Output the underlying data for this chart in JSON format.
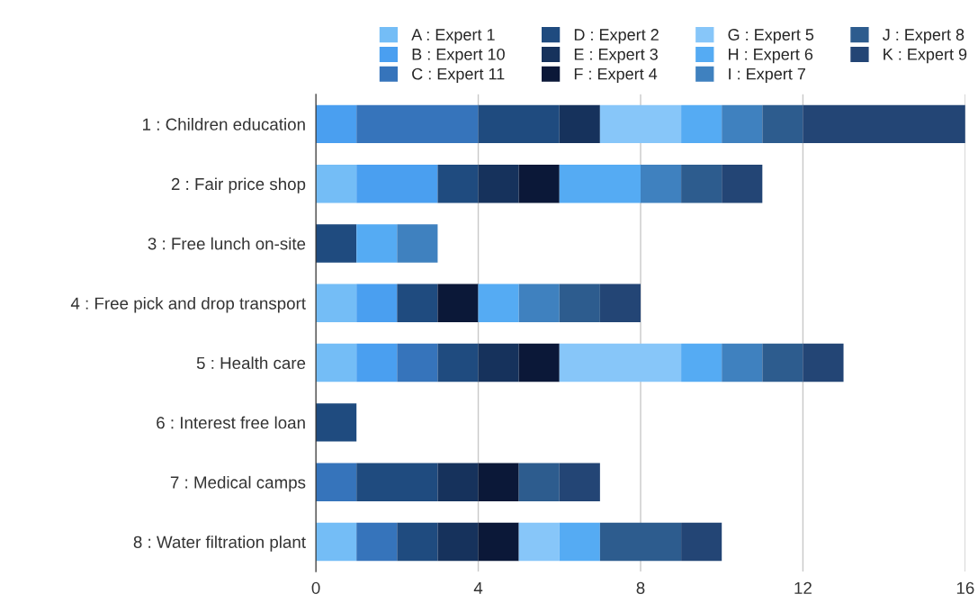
{
  "chart_data": {
    "type": "bar",
    "orientation": "horizontal",
    "stacked": true,
    "categories": [
      "1 : Children education",
      "2 : Fair price shop",
      "3 : Free lunch on-site",
      "4 : Free pick and drop transport",
      "5 : Health care",
      "6 : Interest free loan",
      "7 : Medical camps",
      "8 : Water filtration plant"
    ],
    "series": [
      {
        "name": "A : Expert 1",
        "color": "#74bdf6",
        "values": [
          null,
          1,
          null,
          1,
          1,
          null,
          null,
          1
        ]
      },
      {
        "name": "B : Expert 10",
        "color": "#4a9ff0",
        "values": [
          1,
          2,
          null,
          1,
          1,
          null,
          null,
          null
        ]
      },
      {
        "name": "C : Expert 11",
        "color": "#3674bb",
        "values": [
          3,
          null,
          null,
          null,
          1,
          null,
          1,
          1
        ]
      },
      {
        "name": "D : Expert 2",
        "color": "#1f4b7f",
        "values": [
          2,
          1,
          1,
          1,
          1,
          1,
          2,
          1
        ]
      },
      {
        "name": "E : Expert 3",
        "color": "#16325c",
        "values": [
          1,
          1,
          null,
          null,
          1,
          null,
          1,
          1
        ]
      },
      {
        "name": "F : Expert 4",
        "color": "#0b1838",
        "values": [
          null,
          1,
          null,
          1,
          1,
          null,
          1,
          1
        ]
      },
      {
        "name": "G : Expert 5",
        "color": "#87c6f9",
        "values": [
          2,
          null,
          null,
          null,
          3,
          null,
          null,
          1
        ]
      },
      {
        "name": "H : Expert 6",
        "color": "#55abf3",
        "values": [
          1,
          2,
          1,
          1,
          1,
          null,
          null,
          1
        ]
      },
      {
        "name": "I : Expert 7",
        "color": "#3f81bf",
        "values": [
          1,
          1,
          1,
          1,
          1,
          null,
          null,
          null
        ]
      },
      {
        "name": "J : Expert 8",
        "color": "#2d5c8e",
        "values": [
          1,
          1,
          null,
          1,
          1,
          null,
          1,
          2
        ]
      },
      {
        "name": "K : Expert 9",
        "color": "#234575",
        "values": [
          4,
          1,
          null,
          1,
          1,
          null,
          1,
          1
        ]
      }
    ],
    "xlim": [
      0,
      16
    ],
    "xticks": [
      0,
      4,
      8,
      12,
      16
    ],
    "grid": "x",
    "legend": "top"
  }
}
